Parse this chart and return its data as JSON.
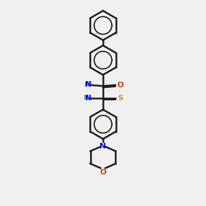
{
  "background_color": "#f0f0f0",
  "bond_color": "#1a1a1a",
  "n_color": "#0000ee",
  "o_color": "#dd3300",
  "s_color": "#bbaa00",
  "h_color": "#4a9090",
  "figsize": [
    3.0,
    3.0
  ],
  "dpi": 100,
  "xlim": [
    0,
    10
  ],
  "ylim": [
    0,
    10
  ]
}
